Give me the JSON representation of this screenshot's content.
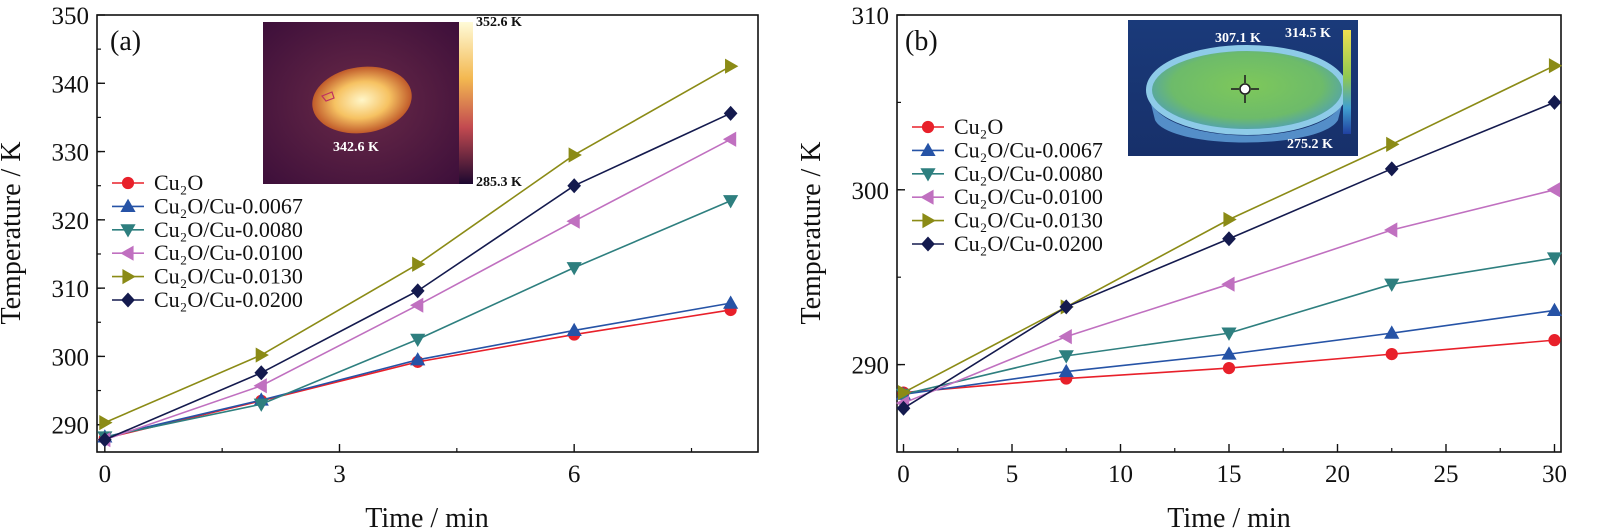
{
  "chart_data": [
    {
      "type": "line",
      "panel_label": "(a)",
      "xlabel": "Time / min",
      "ylabel": "Temperature / K",
      "xlim": [
        -0.1,
        8.35
      ],
      "ylim": [
        286,
        350
      ],
      "xticks": [
        0,
        3,
        6
      ],
      "yticks": [
        290,
        300,
        310,
        320,
        330,
        340,
        350
      ],
      "x": [
        0,
        2,
        4,
        6,
        8
      ],
      "legend_position": "left",
      "inset": {
        "description": "thermal image",
        "max_label": "352.6 K",
        "min_label": "285.3 K",
        "spot_label": "342.6 K"
      },
      "series": [
        {
          "name": "Cu₂O",
          "marker": "circle",
          "color": "#e8202a",
          "values": [
            288.0,
            293.5,
            299.2,
            303.2,
            306.8
          ]
        },
        {
          "name": "Cu₂O/Cu-0.0067",
          "marker": "triangle-up",
          "color": "#2653a6",
          "values": [
            288.2,
            293.6,
            299.5,
            303.8,
            307.8
          ]
        },
        {
          "name": "Cu₂O/Cu-0.0080",
          "marker": "triangle-down",
          "color": "#2e7f7f",
          "values": [
            288.2,
            293.0,
            302.5,
            313.0,
            322.8
          ]
        },
        {
          "name": "Cu₂O/Cu-0.0100",
          "marker": "triangle-left",
          "color": "#c070c0",
          "values": [
            287.8,
            295.7,
            307.5,
            319.8,
            331.8
          ]
        },
        {
          "name": "Cu₂O/Cu-0.0130",
          "marker": "triangle-right",
          "color": "#8b8b16",
          "values": [
            290.3,
            300.2,
            313.5,
            329.5,
            342.5
          ]
        },
        {
          "name": "Cu₂O/Cu-0.0200",
          "marker": "diamond",
          "color": "#141a4e",
          "values": [
            287.8,
            297.6,
            309.6,
            325.0,
            335.6
          ]
        }
      ]
    },
    {
      "type": "line",
      "panel_label": "(b)",
      "xlabel": "Time / min",
      "ylabel": "Temperature / K",
      "xlim": [
        -0.3,
        30.3
      ],
      "ylim": [
        285,
        310
      ],
      "xticks": [
        0,
        5,
        10,
        15,
        20,
        25,
        30
      ],
      "yticks": [
        290,
        300,
        310
      ],
      "x": [
        0,
        7.5,
        15,
        22.5,
        30
      ],
      "legend_position": "left",
      "inset": {
        "description": "thermal image",
        "max_label": "314.5 K",
        "min_label": "275.2 K",
        "spot_label": "307.1 K"
      },
      "series": [
        {
          "name": "Cu₂O",
          "marker": "circle",
          "color": "#e8202a",
          "values": [
            288.4,
            289.2,
            289.8,
            290.6,
            291.4
          ]
        },
        {
          "name": "Cu₂O/Cu-0.0067",
          "marker": "triangle-up",
          "color": "#2653a6",
          "values": [
            288.3,
            289.6,
            290.6,
            291.8,
            293.1
          ]
        },
        {
          "name": "Cu₂O/Cu-0.0080",
          "marker": "triangle-down",
          "color": "#2e7f7f",
          "values": [
            288.3,
            290.5,
            291.8,
            294.6,
            296.1
          ]
        },
        {
          "name": "Cu₂O/Cu-0.0100",
          "marker": "triangle-left",
          "color": "#c070c0",
          "values": [
            287.8,
            291.6,
            294.6,
            297.7,
            300.0
          ]
        },
        {
          "name": "Cu₂O/Cu-0.0130",
          "marker": "triangle-right",
          "color": "#8b8b16",
          "values": [
            288.4,
            293.3,
            298.3,
            302.6,
            307.1
          ]
        },
        {
          "name": "Cu₂O/Cu-0.0200",
          "marker": "diamond",
          "color": "#141a4e",
          "values": [
            287.5,
            293.3,
            297.2,
            301.2,
            305.0
          ]
        }
      ]
    }
  ]
}
